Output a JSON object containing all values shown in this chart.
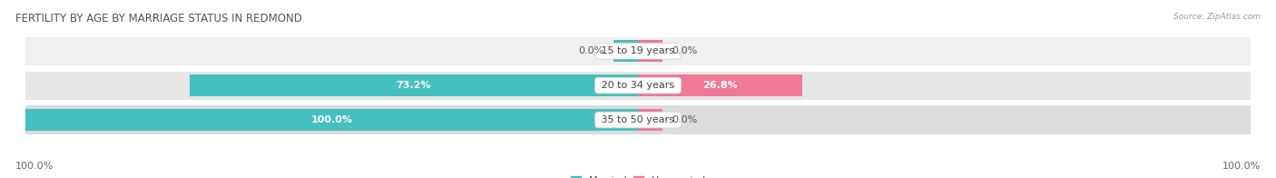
{
  "title": "FERTILITY BY AGE BY MARRIAGE STATUS IN REDMOND",
  "source": "Source: ZipAtlas.com",
  "categories": [
    "15 to 19 years",
    "20 to 34 years",
    "35 to 50 years"
  ],
  "married_pct": [
    0.0,
    73.2,
    100.0
  ],
  "unmarried_pct": [
    0.0,
    26.8,
    0.0
  ],
  "married_color": "#45bfbf",
  "unmarried_color": "#f07898",
  "bar_height": 0.62,
  "title_fontsize": 8.5,
  "label_fontsize": 8,
  "pct_fontsize": 8,
  "legend_fontsize": 8,
  "bg_color": "#ffffff",
  "left_axis_label": "100.0%",
  "right_axis_label": "100.0%",
  "xlim": [
    -100,
    100
  ],
  "row_bg_color": "#f0f0f0",
  "row_bg_color2": "#e6e6e6",
  "row_bg_color3": "#dcdcdc",
  "min_bar_pct": 4.0
}
